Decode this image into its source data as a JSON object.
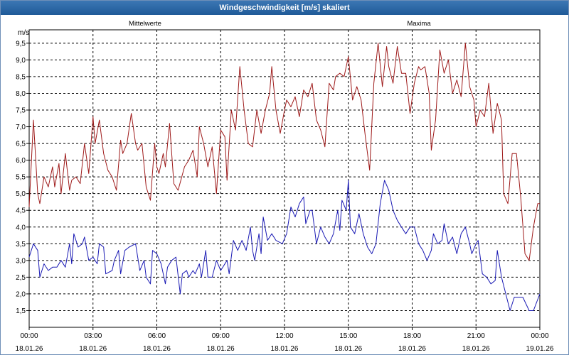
{
  "window": {
    "title": "Windgeschwindigkeit [m/s] skaliert"
  },
  "colors": {
    "mittelwerte": "#1a1ab4",
    "maxima": "#9e1a1a",
    "grid": "#000000"
  },
  "chart_data": {
    "type": "line",
    "title": "Windgeschwindigkeit [m/s] skaliert",
    "ylabel": "m/s",
    "ylim": [
      1.0,
      9.9
    ],
    "xlim": [
      0,
      24
    ],
    "y_ticks": [
      "1,5",
      "2,0",
      "2,5",
      "3,0",
      "3,5",
      "4,0",
      "4,5",
      "5,0",
      "5,5",
      "6,0",
      "6,5",
      "7,0",
      "7,5",
      "8,0",
      "8,5",
      "9,0",
      "9,5"
    ],
    "x_ticks": [
      {
        "time": "00:00",
        "date": "18.01.26"
      },
      {
        "time": "03:00",
        "date": "18.01.26"
      },
      {
        "time": "06:00",
        "date": "18.01.26"
      },
      {
        "time": "09:00",
        "date": "18.01.26"
      },
      {
        "time": "12:00",
        "date": "18.01.26"
      },
      {
        "time": "15:00",
        "date": "18.01.26"
      },
      {
        "time": "18:00",
        "date": "18.01.26"
      },
      {
        "time": "21:00",
        "date": "18.01.26"
      },
      {
        "time": "00:00",
        "date": "19.01.26"
      }
    ],
    "grid": true,
    "series": [
      {
        "name": "Mittelwerte",
        "points": [
          [
            0.0,
            3.1
          ],
          [
            0.2,
            3.5
          ],
          [
            0.4,
            3.3
          ],
          [
            0.5,
            2.5
          ],
          [
            0.7,
            2.9
          ],
          [
            0.9,
            2.7
          ],
          [
            1.1,
            2.8
          ],
          [
            1.3,
            2.8
          ],
          [
            1.5,
            3.0
          ],
          [
            1.7,
            2.8
          ],
          [
            1.9,
            3.5
          ],
          [
            2.0,
            2.9
          ],
          [
            2.1,
            3.8
          ],
          [
            2.3,
            3.4
          ],
          [
            2.5,
            3.5
          ],
          [
            2.6,
            3.7
          ],
          [
            2.8,
            3.0
          ],
          [
            3.0,
            3.1
          ],
          [
            3.2,
            2.9
          ],
          [
            3.3,
            3.5
          ],
          [
            3.5,
            3.4
          ],
          [
            3.6,
            2.6
          ],
          [
            3.9,
            2.7
          ],
          [
            4.0,
            3.0
          ],
          [
            4.2,
            3.3
          ],
          [
            4.3,
            2.6
          ],
          [
            4.5,
            3.3
          ],
          [
            4.7,
            3.4
          ],
          [
            5.0,
            3.5
          ],
          [
            5.2,
            2.7
          ],
          [
            5.4,
            3.0
          ],
          [
            5.5,
            2.5
          ],
          [
            5.7,
            2.3
          ],
          [
            5.8,
            3.3
          ],
          [
            6.0,
            3.2
          ],
          [
            6.2,
            2.9
          ],
          [
            6.4,
            2.3
          ],
          [
            6.5,
            2.8
          ],
          [
            6.7,
            3.0
          ],
          [
            6.9,
            3.1
          ],
          [
            7.1,
            2.0
          ],
          [
            7.2,
            2.6
          ],
          [
            7.4,
            2.7
          ],
          [
            7.5,
            2.5
          ],
          [
            7.7,
            2.7
          ],
          [
            7.8,
            2.6
          ],
          [
            8.0,
            2.9
          ],
          [
            8.1,
            2.5
          ],
          [
            8.3,
            3.3
          ],
          [
            8.4,
            2.5
          ],
          [
            8.6,
            2.5
          ],
          [
            8.8,
            3.0
          ],
          [
            9.0,
            2.7
          ],
          [
            9.3,
            3.0
          ],
          [
            9.4,
            2.6
          ],
          [
            9.6,
            3.6
          ],
          [
            9.8,
            3.3
          ],
          [
            10.0,
            3.6
          ],
          [
            10.2,
            3.3
          ],
          [
            10.4,
            4.0
          ],
          [
            10.5,
            3.3
          ],
          [
            10.6,
            3.0
          ],
          [
            10.8,
            3.8
          ],
          [
            10.9,
            3.2
          ],
          [
            11.0,
            4.3
          ],
          [
            11.2,
            3.6
          ],
          [
            11.4,
            3.8
          ],
          [
            11.6,
            3.6
          ],
          [
            11.9,
            3.5
          ],
          [
            12.1,
            3.8
          ],
          [
            12.3,
            4.6
          ],
          [
            12.5,
            4.3
          ],
          [
            12.7,
            4.7
          ],
          [
            12.9,
            4.9
          ],
          [
            13.0,
            4.1
          ],
          [
            13.2,
            4.5
          ],
          [
            13.3,
            4.5
          ],
          [
            13.5,
            3.5
          ],
          [
            13.7,
            4.0
          ],
          [
            13.9,
            3.7
          ],
          [
            14.1,
            3.5
          ],
          [
            14.3,
            3.8
          ],
          [
            14.5,
            4.5
          ],
          [
            14.6,
            3.9
          ],
          [
            14.7,
            4.8
          ],
          [
            14.9,
            4.5
          ],
          [
            15.0,
            5.4
          ],
          [
            15.1,
            4.0
          ],
          [
            15.3,
            3.8
          ],
          [
            15.5,
            4.4
          ],
          [
            15.7,
            3.8
          ],
          [
            15.9,
            3.4
          ],
          [
            16.1,
            3.2
          ],
          [
            16.3,
            3.5
          ],
          [
            16.5,
            4.7
          ],
          [
            16.7,
            5.4
          ],
          [
            16.9,
            5.1
          ],
          [
            17.1,
            4.5
          ],
          [
            17.3,
            4.2
          ],
          [
            17.5,
            4.0
          ],
          [
            17.7,
            3.8
          ],
          [
            17.9,
            4.0
          ],
          [
            18.1,
            4.0
          ],
          [
            18.3,
            3.5
          ],
          [
            18.5,
            3.3
          ],
          [
            18.7,
            3.0
          ],
          [
            18.9,
            3.3
          ],
          [
            19.0,
            3.8
          ],
          [
            19.2,
            3.5
          ],
          [
            19.4,
            3.6
          ],
          [
            19.5,
            4.1
          ],
          [
            19.7,
            3.5
          ],
          [
            19.9,
            3.7
          ],
          [
            20.1,
            3.2
          ],
          [
            20.3,
            3.8
          ],
          [
            20.5,
            4.0
          ],
          [
            20.7,
            3.5
          ],
          [
            20.8,
            3.2
          ],
          [
            21.0,
            3.5
          ],
          [
            21.1,
            3.6
          ],
          [
            21.3,
            2.6
          ],
          [
            21.5,
            2.5
          ],
          [
            21.7,
            2.3
          ],
          [
            21.9,
            2.4
          ],
          [
            22.0,
            3.3
          ],
          [
            22.2,
            2.5
          ],
          [
            22.4,
            2.0
          ],
          [
            22.6,
            1.5
          ],
          [
            22.8,
            1.9
          ],
          [
            23.0,
            1.9
          ],
          [
            23.2,
            1.9
          ],
          [
            23.5,
            1.5
          ],
          [
            23.7,
            1.5
          ],
          [
            24.0,
            2.0
          ]
        ]
      },
      {
        "name": "Maxima",
        "points": [
          [
            0.0,
            4.6
          ],
          [
            0.2,
            7.2
          ],
          [
            0.4,
            5.0
          ],
          [
            0.5,
            4.7
          ],
          [
            0.7,
            5.5
          ],
          [
            0.9,
            5.2
          ],
          [
            1.1,
            5.8
          ],
          [
            1.2,
            5.2
          ],
          [
            1.4,
            5.9
          ],
          [
            1.5,
            5.0
          ],
          [
            1.7,
            6.2
          ],
          [
            1.9,
            5.1
          ],
          [
            2.0,
            5.4
          ],
          [
            2.2,
            5.5
          ],
          [
            2.4,
            5.3
          ],
          [
            2.6,
            6.5
          ],
          [
            2.8,
            5.6
          ],
          [
            3.0,
            7.3
          ],
          [
            3.1,
            6.5
          ],
          [
            3.3,
            7.2
          ],
          [
            3.5,
            6.2
          ],
          [
            3.7,
            5.7
          ],
          [
            3.9,
            5.5
          ],
          [
            4.1,
            5.1
          ],
          [
            4.3,
            6.6
          ],
          [
            4.4,
            6.2
          ],
          [
            4.6,
            6.5
          ],
          [
            4.8,
            7.4
          ],
          [
            5.0,
            6.5
          ],
          [
            5.1,
            6.3
          ],
          [
            5.3,
            6.5
          ],
          [
            5.5,
            5.2
          ],
          [
            5.7,
            4.8
          ],
          [
            5.9,
            6.5
          ],
          [
            6.0,
            5.8
          ],
          [
            6.1,
            5.6
          ],
          [
            6.3,
            6.2
          ],
          [
            6.4,
            5.8
          ],
          [
            6.6,
            7.1
          ],
          [
            6.8,
            5.3
          ],
          [
            7.0,
            5.1
          ],
          [
            7.3,
            5.8
          ],
          [
            7.5,
            6.0
          ],
          [
            7.7,
            6.3
          ],
          [
            7.9,
            5.5
          ],
          [
            8.0,
            7.0
          ],
          [
            8.2,
            6.5
          ],
          [
            8.4,
            5.8
          ],
          [
            8.6,
            6.4
          ],
          [
            8.8,
            5.0
          ],
          [
            9.0,
            6.9
          ],
          [
            9.2,
            6.7
          ],
          [
            9.3,
            5.4
          ],
          [
            9.5,
            7.5
          ],
          [
            9.7,
            6.9
          ],
          [
            9.9,
            8.8
          ],
          [
            10.1,
            7.5
          ],
          [
            10.3,
            6.5
          ],
          [
            10.5,
            6.4
          ],
          [
            10.7,
            7.5
          ],
          [
            10.9,
            6.8
          ],
          [
            11.1,
            7.5
          ],
          [
            11.3,
            8.0
          ],
          [
            11.4,
            8.8
          ],
          [
            11.6,
            7.5
          ],
          [
            11.8,
            6.8
          ],
          [
            12.0,
            7.5
          ],
          [
            12.1,
            7.8
          ],
          [
            12.3,
            7.6
          ],
          [
            12.5,
            7.9
          ],
          [
            12.7,
            7.3
          ],
          [
            12.9,
            8.1
          ],
          [
            13.1,
            7.9
          ],
          [
            13.3,
            8.3
          ],
          [
            13.5,
            7.2
          ],
          [
            13.7,
            6.9
          ],
          [
            13.9,
            6.4
          ],
          [
            14.1,
            8.3
          ],
          [
            14.3,
            8.1
          ],
          [
            14.4,
            8.5
          ],
          [
            14.6,
            8.6
          ],
          [
            14.8,
            8.5
          ],
          [
            15.0,
            9.1
          ],
          [
            15.2,
            7.8
          ],
          [
            15.4,
            8.2
          ],
          [
            15.6,
            7.8
          ],
          [
            15.8,
            6.7
          ],
          [
            16.0,
            5.7
          ],
          [
            16.2,
            8.3
          ],
          [
            16.4,
            9.5
          ],
          [
            16.6,
            8.2
          ],
          [
            16.8,
            9.4
          ],
          [
            16.9,
            8.8
          ],
          [
            17.1,
            8.3
          ],
          [
            17.3,
            9.4
          ],
          [
            17.5,
            8.6
          ],
          [
            17.7,
            8.6
          ],
          [
            17.9,
            7.4
          ],
          [
            18.1,
            8.3
          ],
          [
            18.3,
            8.8
          ],
          [
            18.4,
            8.7
          ],
          [
            18.6,
            8.8
          ],
          [
            18.8,
            8.0
          ],
          [
            18.9,
            6.3
          ],
          [
            19.1,
            7.2
          ],
          [
            19.3,
            9.3
          ],
          [
            19.5,
            8.6
          ],
          [
            19.7,
            9.0
          ],
          [
            19.9,
            8.0
          ],
          [
            20.1,
            8.4
          ],
          [
            20.3,
            7.9
          ],
          [
            20.5,
            9.5
          ],
          [
            20.7,
            8.2
          ],
          [
            20.9,
            7.8
          ],
          [
            21.0,
            7.0
          ],
          [
            21.2,
            7.5
          ],
          [
            21.4,
            7.3
          ],
          [
            21.6,
            8.3
          ],
          [
            21.8,
            6.8
          ],
          [
            22.0,
            7.7
          ],
          [
            22.2,
            7.2
          ],
          [
            22.3,
            5.0
          ],
          [
            22.5,
            4.7
          ],
          [
            22.7,
            6.2
          ],
          [
            22.9,
            6.2
          ],
          [
            23.1,
            4.9
          ],
          [
            23.3,
            3.2
          ],
          [
            23.5,
            3.0
          ],
          [
            23.7,
            4.0
          ],
          [
            23.9,
            4.7
          ],
          [
            24.0,
            4.7
          ]
        ]
      }
    ]
  }
}
